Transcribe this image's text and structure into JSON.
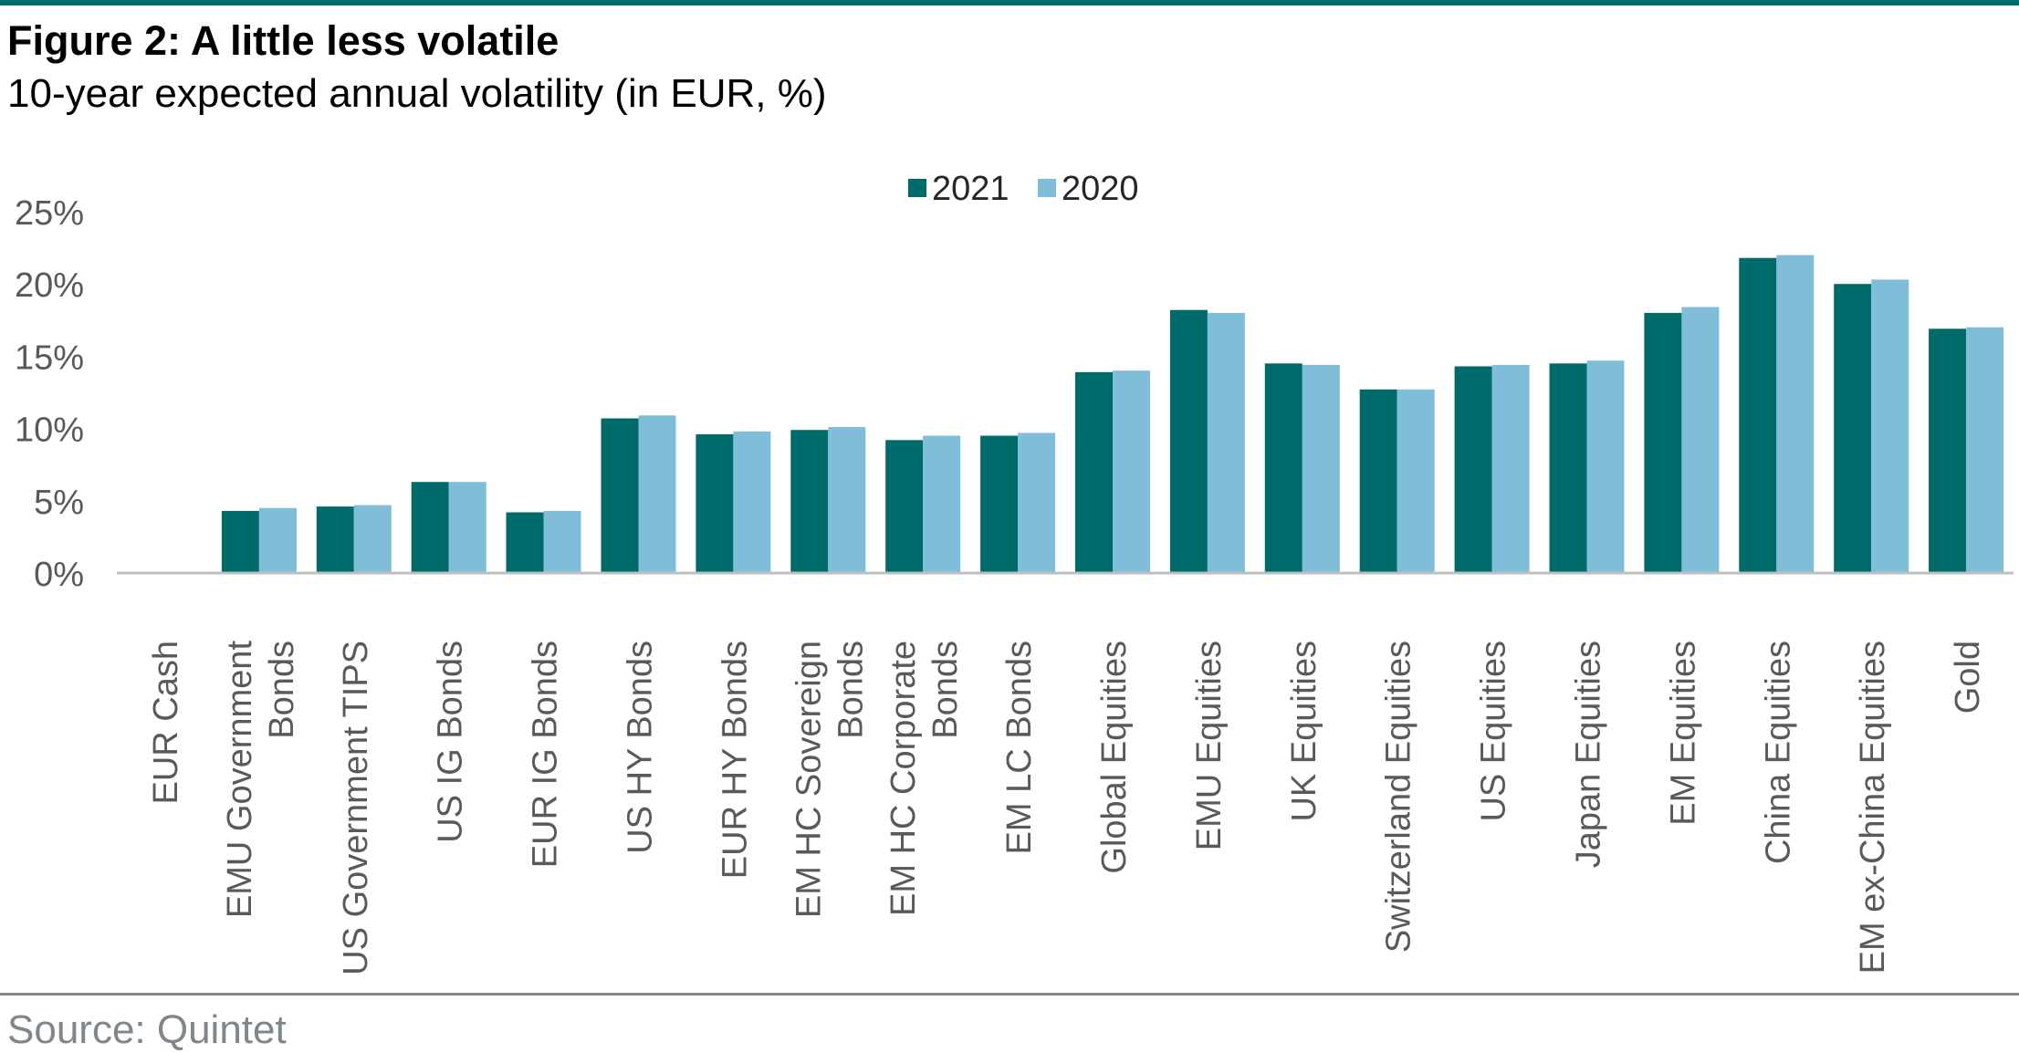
{
  "title": "Figure 2: A little less volatile",
  "subtitle": "10-year expected annual volatility (in EUR, %)",
  "source": "Source: Quintet",
  "colors": {
    "series_2021": "#006b6b",
    "series_2020": "#80bdd9",
    "rule": "#006b6b",
    "axis_text": "#595959",
    "source_text": "#7f868c"
  },
  "chart_data": {
    "type": "bar",
    "categories": [
      "EUR Cash",
      "EMU Government Bonds",
      "US Government TIPS",
      "US IG Bonds",
      "EUR IG Bonds",
      "US HY Bonds",
      "EUR HY Bonds",
      "EM HC Sovereign Bonds",
      "EM HC Corporate Bonds",
      "EM LC Bonds",
      "Global Equities",
      "EMU Equities",
      "UK Equities",
      "Switzerland Equities",
      "US Equities",
      "Japan Equities",
      "EM Equities",
      "China Equities",
      "EM ex-China Equities",
      "Gold"
    ],
    "category_lines": [
      [
        "EUR Cash"
      ],
      [
        "EMU Government",
        "Bonds"
      ],
      [
        "US Government TIPS"
      ],
      [
        "US IG Bonds"
      ],
      [
        "EUR IG Bonds"
      ],
      [
        "US HY Bonds"
      ],
      [
        "EUR HY Bonds"
      ],
      [
        "EM HC Sovereign",
        "Bonds"
      ],
      [
        "EM HC Corporate",
        "Bonds"
      ],
      [
        "EM LC Bonds"
      ],
      [
        "Global Equities"
      ],
      [
        "EMU Equities"
      ],
      [
        "UK Equities"
      ],
      [
        "Switzerland Equities"
      ],
      [
        "US Equities"
      ],
      [
        "Japan Equities"
      ],
      [
        "EM Equities"
      ],
      [
        "China Equities"
      ],
      [
        "EM ex-China Equities"
      ],
      [
        "Gold"
      ]
    ],
    "series": [
      {
        "name": "2021",
        "values": [
          0,
          4.3,
          4.6,
          6.3,
          4.2,
          10.7,
          9.6,
          9.9,
          9.2,
          9.5,
          13.9,
          18.2,
          14.5,
          12.7,
          14.3,
          14.5,
          18.0,
          21.8,
          20.0,
          16.9
        ]
      },
      {
        "name": "2020",
        "values": [
          0,
          4.5,
          4.7,
          6.3,
          4.3,
          10.9,
          9.8,
          10.1,
          9.5,
          9.7,
          14.0,
          18.0,
          14.4,
          12.7,
          14.4,
          14.7,
          18.4,
          22.0,
          20.3,
          17.0
        ]
      }
    ],
    "ylim": [
      0,
      25
    ],
    "yticks": [
      "0%",
      "5%",
      "10%",
      "15%",
      "20%",
      "25%"
    ],
    "ytick_values": [
      0,
      5,
      10,
      15,
      20,
      25
    ],
    "xlabel": "",
    "ylabel": "",
    "grid": false,
    "legend_position": "top-center"
  }
}
